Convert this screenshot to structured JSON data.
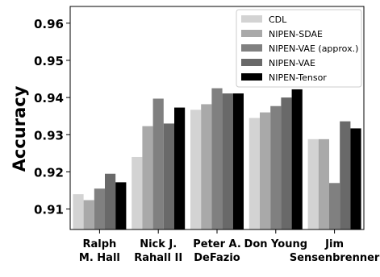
{
  "chart_data": {
    "type": "bar",
    "title": "",
    "xlabel": "",
    "ylabel": "Accuracy",
    "ylim": [
      0.9045,
      0.9645
    ],
    "yticks": [
      "0.91",
      "0.92",
      "0.93",
      "0.94",
      "0.95",
      "0.96"
    ],
    "ytick_values": [
      0.91,
      0.92,
      0.93,
      0.94,
      0.95,
      0.96
    ],
    "categories": [
      [
        "Ralph",
        "M. Hall"
      ],
      [
        "Nick J.",
        "Rahall II"
      ],
      [
        "Peter A.",
        "DeFazio"
      ],
      [
        "Don Young",
        ""
      ],
      [
        "Jim",
        "Sensenbrenner"
      ]
    ],
    "legend_position": "top-right",
    "grid": false,
    "series": [
      {
        "name": "CDL",
        "color": "#d3d3d3",
        "values": [
          0.914,
          0.924,
          0.9367,
          0.9345,
          0.9288
        ]
      },
      {
        "name": "NIPEN-SDAE",
        "color": "#a9a9a9",
        "values": [
          0.9124,
          0.9323,
          0.9382,
          0.936,
          0.9288
        ]
      },
      {
        "name": "NIPEN-VAE (approx.)",
        "color": "#808080",
        "values": [
          0.9155,
          0.9397,
          0.9425,
          0.9377,
          0.917
        ]
      },
      {
        "name": "NIPEN-VAE",
        "color": "#696969",
        "values": [
          0.9195,
          0.933,
          0.9411,
          0.94,
          0.9336
        ]
      },
      {
        "name": "NIPEN-Tensor",
        "color": "#000000",
        "values": [
          0.9172,
          0.9373,
          0.9411,
          0.9422,
          0.9317
        ]
      }
    ]
  }
}
